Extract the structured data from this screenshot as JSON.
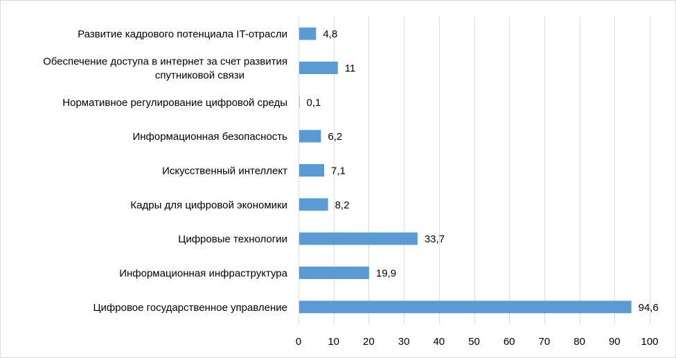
{
  "chart_data": {
    "type": "bar",
    "orientation": "horizontal",
    "title": "",
    "xlabel": "",
    "ylabel": "",
    "xlim": [
      0,
      100
    ],
    "x_ticks": [
      0,
      10,
      20,
      30,
      40,
      50,
      60,
      70,
      80,
      90,
      100
    ],
    "grid": true,
    "legend": "none",
    "bar_color": "#5b9bd5",
    "grid_color": "#d9d9d9",
    "categories": [
      "Цифровое государственное управление",
      "Информационная инфраструктура",
      "Цифровые технологии",
      "Кадры для цифровой экономики",
      "Искусственный интеллект",
      "Информационная безопасность",
      "Нормативное регулирование цифровой среды",
      "Обеспечение доступа в интернет за счет развития спутниковой связи",
      "Развитие кадрового потенциала IT-отрасли"
    ],
    "category_lines": [
      [
        "Цифровое государственное управление"
      ],
      [
        "Информационная инфраструктура"
      ],
      [
        "Цифровые технологии"
      ],
      [
        "Кадры для цифровой экономики"
      ],
      [
        "Искусственный интеллект"
      ],
      [
        "Информационная безопасность"
      ],
      [
        "Нормативное регулирование цифровой среды"
      ],
      [
        "Обеспечение доступа в интернет за счет развития",
        "спутниковой связи"
      ],
      [
        "Развитие кадрового потенциала IT-отрасли"
      ]
    ],
    "values": [
      94.6,
      19.9,
      33.7,
      8.2,
      7.1,
      6.2,
      0.1,
      11,
      4.8
    ],
    "value_labels": [
      "94,6",
      "19,9",
      "33,7",
      "8,2",
      "7,1",
      "6,2",
      "0,1",
      "11",
      "4,8"
    ]
  }
}
